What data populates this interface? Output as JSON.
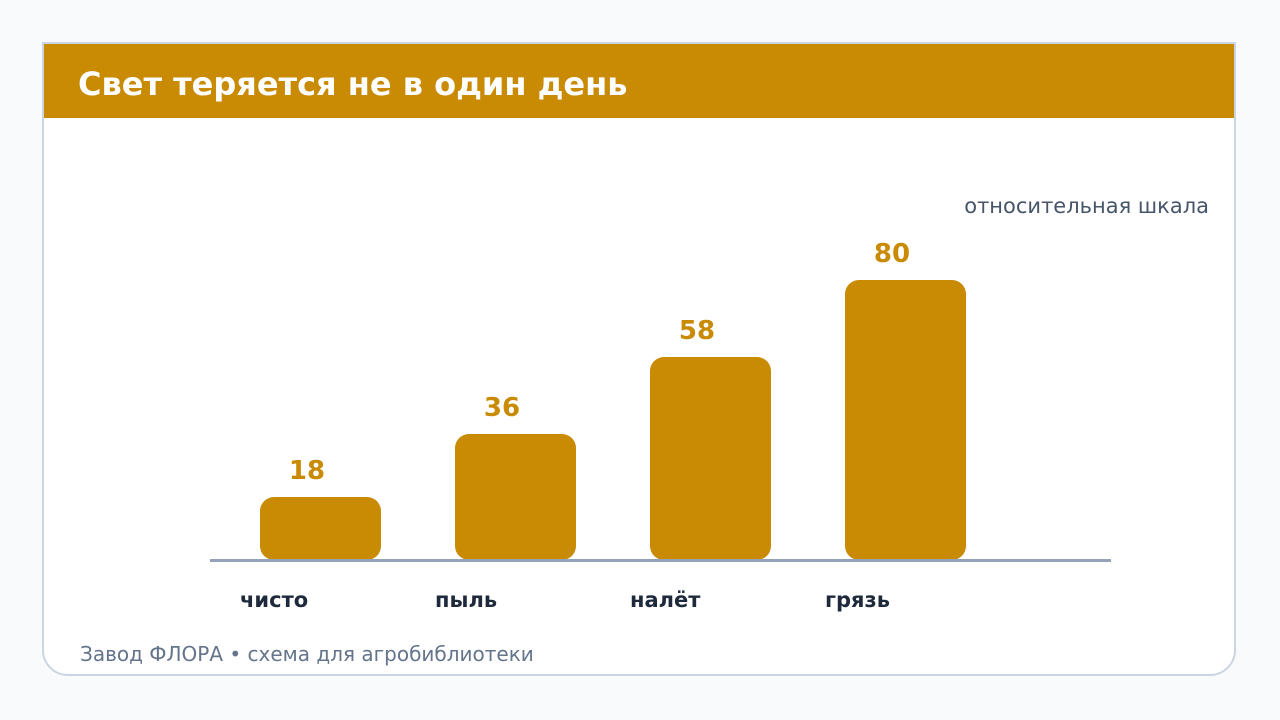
{
  "title": "Свет теряется не в один день",
  "footer": "Завод ФЛОРА • схема для агробиблиотеки",
  "colors": {
    "accent": "#c98a04",
    "axis": "#94a3b8",
    "category_text": "#1e293b",
    "note_text": "#475569",
    "footer_text": "#64748b"
  },
  "chart_data": {
    "type": "bar",
    "categories": [
      "чисто",
      "пыль",
      "налёт",
      "грязь"
    ],
    "values": [
      18,
      36,
      58,
      80
    ],
    "note": "относительная шкала",
    "data_labels": true,
    "grid": false
  }
}
